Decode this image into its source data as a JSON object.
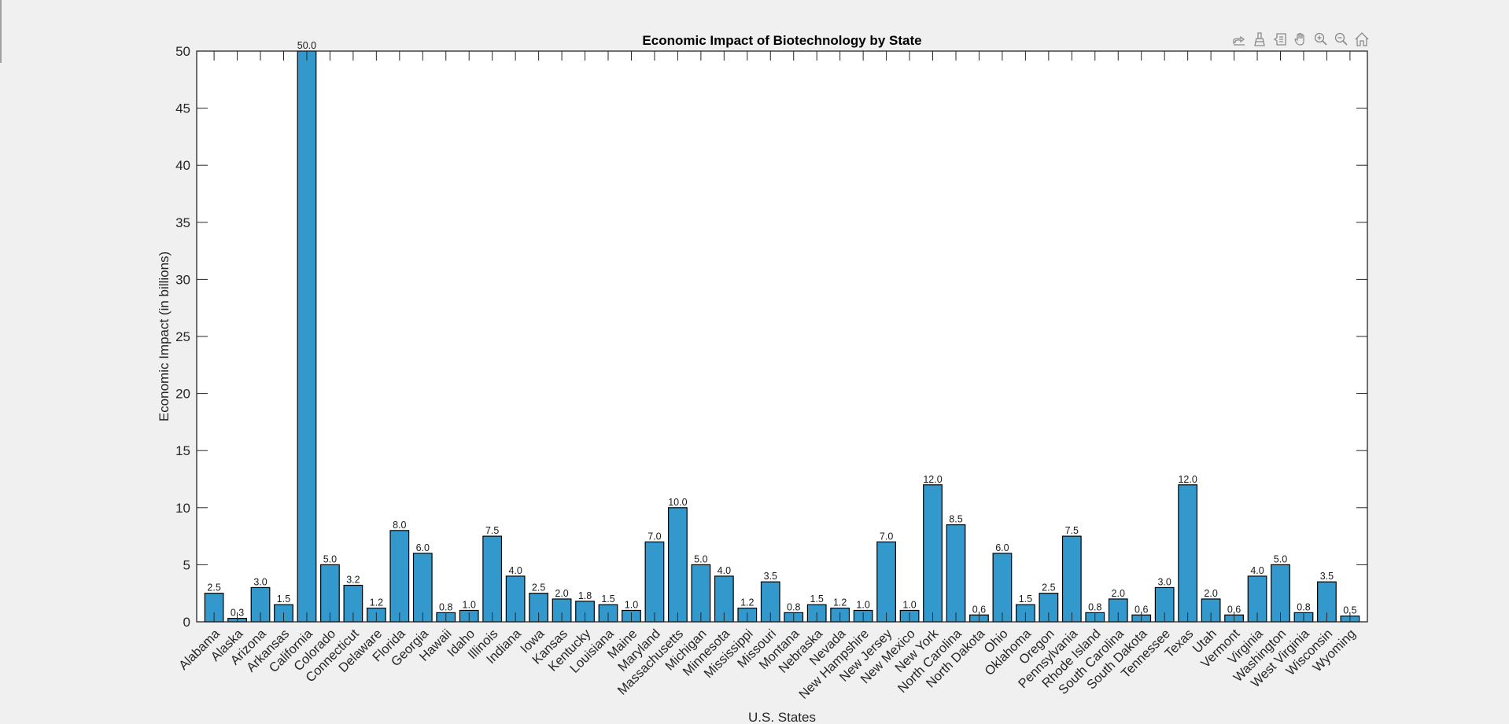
{
  "toolbar": {
    "items": [
      {
        "name": "edit-plot-icon",
        "label": "Edit plot"
      },
      {
        "name": "brush-icon",
        "label": "Brush"
      },
      {
        "name": "data-tips-icon",
        "label": "Data tips"
      },
      {
        "name": "pan-icon",
        "label": "Pan"
      },
      {
        "name": "zoom-in-icon",
        "label": "Zoom in"
      },
      {
        "name": "zoom-out-icon",
        "label": "Zoom out"
      },
      {
        "name": "home-icon",
        "label": "Restore view"
      }
    ]
  },
  "colors": {
    "bar": "#3399cc",
    "bar_edge": "#000000",
    "axis": "#262626",
    "background": "#f0f0f0",
    "plot_bg": "#ffffff"
  },
  "chart_data": {
    "type": "bar",
    "title": "Economic Impact of Biotechnology by State",
    "xlabel": "U.S. States",
    "ylabel": "Economic Impact (in billions)",
    "ylim": [
      0,
      50
    ],
    "yticks": [
      0,
      5,
      10,
      15,
      20,
      25,
      30,
      35,
      40,
      45,
      50
    ],
    "grid": false,
    "legend": "none",
    "data_label_format": "one decimal",
    "categories": [
      "Alabama",
      "Alaska",
      "Arizona",
      "Arkansas",
      "California",
      "Colorado",
      "Connecticut",
      "Delaware",
      "Florida",
      "Georgia",
      "Hawaii",
      "Idaho",
      "Illinois",
      "Indiana",
      "Iowa",
      "Kansas",
      "Kentucky",
      "Louisiana",
      "Maine",
      "Maryland",
      "Massachusetts",
      "Michigan",
      "Minnesota",
      "Mississippi",
      "Missouri",
      "Montana",
      "Nebraska",
      "Nevada",
      "New Hampshire",
      "New Jersey",
      "New Mexico",
      "New York",
      "North Carolina",
      "North Dakota",
      "Ohio",
      "Oklahoma",
      "Oregon",
      "Pennsylvania",
      "Rhode Island",
      "South Carolina",
      "South Dakota",
      "Tennessee",
      "Texas",
      "Utah",
      "Vermont",
      "Virginia",
      "Washington",
      "West Virginia",
      "Wisconsin",
      "Wyoming"
    ],
    "values": [
      2.5,
      0.3,
      3.0,
      1.5,
      50.0,
      5.0,
      3.2,
      1.2,
      8.0,
      6.0,
      0.8,
      1.0,
      7.5,
      4.0,
      2.5,
      2.0,
      1.8,
      1.5,
      1.0,
      7.0,
      10.0,
      5.0,
      4.0,
      1.2,
      3.5,
      0.8,
      1.5,
      1.2,
      1.0,
      7.0,
      1.0,
      12.0,
      8.5,
      0.6,
      6.0,
      1.5,
      2.5,
      7.5,
      0.8,
      2.0,
      0.6,
      3.0,
      12.0,
      2.0,
      0.6,
      4.0,
      5.0,
      0.8,
      3.5,
      0.5
    ],
    "data_labels": [
      "2.5",
      "0.3",
      "3.0",
      "1.5",
      "50.0",
      "5.0",
      "3.2",
      "1.2",
      "8.0",
      "6.0",
      "0.8",
      "1.0",
      "7.5",
      "4.0",
      "2.5",
      "2.0",
      "1.8",
      "1.5",
      "1.0",
      "7.0",
      "10.0",
      "5.0",
      "4.0",
      "1.2",
      "3.5",
      "0.8",
      "1.5",
      "1.2",
      "1.0",
      "7.0",
      "1.0",
      "12.0",
      "8.5",
      "0.6",
      "6.0",
      "1.5",
      "2.5",
      "7.5",
      "0.8",
      "2.0",
      "0.6",
      "3.0",
      "12.0",
      "2.0",
      "0.6",
      "4.0",
      "5.0",
      "0.8",
      "3.5",
      "0.5"
    ]
  }
}
